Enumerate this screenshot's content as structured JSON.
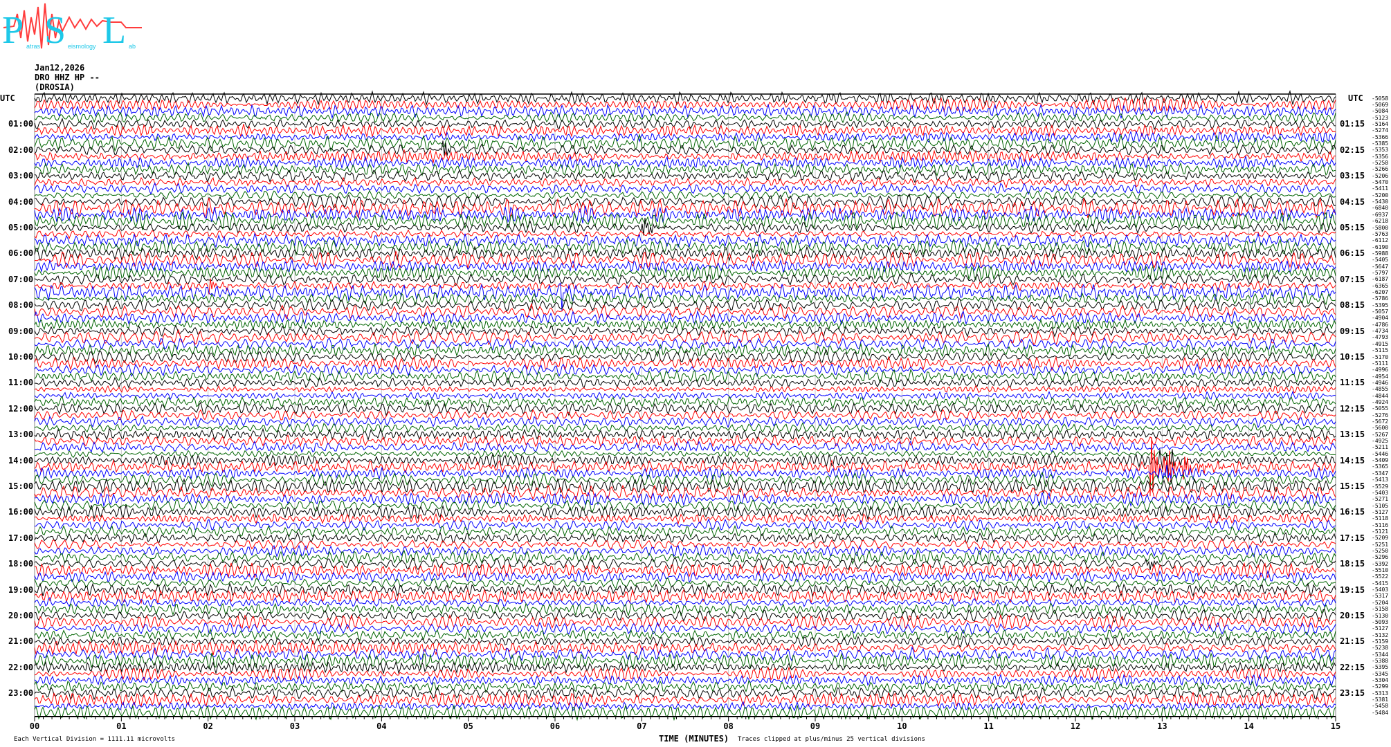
{
  "logo": {
    "letters": [
      "P",
      "S",
      "L"
    ],
    "words": [
      "atras",
      "eismology",
      "ab"
    ],
    "colors": {
      "letters": "#1ec8e8",
      "wave": "#ff3c3c"
    }
  },
  "header": {
    "date": "Jan12,2026",
    "channel": "DRO HHZ HP --",
    "station": "(DROSIA)"
  },
  "left_axis": {
    "title": "UTC",
    "labels": [
      "01:00",
      "02:00",
      "03:00",
      "04:00",
      "05:00",
      "06:00",
      "07:00",
      "08:00",
      "09:00",
      "10:00",
      "11:00",
      "12:00",
      "13:00",
      "14:00",
      "15:00",
      "16:00",
      "17:00",
      "18:00",
      "19:00",
      "20:00",
      "21:00",
      "22:00",
      "23:00"
    ]
  },
  "right_axis": {
    "title": "UTC",
    "labels": [
      "01:15",
      "02:15",
      "03:15",
      "04:15",
      "05:15",
      "06:15",
      "07:15",
      "08:15",
      "09:15",
      "10:15",
      "11:15",
      "12:15",
      "13:15",
      "14:15",
      "15:15",
      "16:15",
      "17:15",
      "18:15",
      "19:15",
      "20:15",
      "21:15",
      "22:15",
      "23:15"
    ]
  },
  "line_offsets": [
    "-5058",
    "-5069",
    "-5084",
    "-5123",
    "-5164",
    "-5274",
    "-5366",
    "-5385",
    "-5353",
    "-5356",
    "-5258",
    "-5266",
    "-5206",
    "-5470",
    "-5411",
    "-5200",
    "-5430",
    "-6840",
    "-6937",
    "-6218",
    "-5800",
    "-5763",
    "-6112",
    "-6190",
    "-5988",
    "-5405",
    "-5647",
    "-5797",
    "-6187",
    "-6365",
    "-6207",
    "-5786",
    "-5395",
    "-5057",
    "-4904",
    "-4786",
    "-4734",
    "-4793",
    "-4915",
    "-5115",
    "-5170",
    "-5111",
    "-4996",
    "-4954",
    "-4946",
    "-4855",
    "-4844",
    "-4924",
    "-5055",
    "-5276",
    "-5672",
    "-5600",
    "-5267",
    "-4925",
    "-5211",
    "-5446",
    "-5409",
    "-5365",
    "-5347",
    "-5413",
    "-5529",
    "-5403",
    "-5271",
    "-5105",
    "-5127",
    "-5118",
    "-5116",
    "-5121",
    "-5209",
    "-5251",
    "-5250",
    "-5296",
    "-5392",
    "-5510",
    "-5522",
    "-5415",
    "-5403",
    "-5317",
    "-5204",
    "-5158",
    "-5130",
    "-5093",
    "-5127",
    "-5132",
    "-5159",
    "-5238",
    "-5344",
    "-5388",
    "-5395",
    "-5345",
    "-5304",
    "-5299",
    "-5313",
    "-5381",
    "-5458",
    "-5484"
  ],
  "x_axis": {
    "ticks": [
      "00",
      "01",
      "02",
      "03",
      "04",
      "05",
      "06",
      "07",
      "08",
      "09",
      "10",
      "11",
      "12",
      "13",
      "14",
      "15"
    ],
    "title": "TIME (MINUTES)"
  },
  "footer": {
    "scale": "Each Vertical Division = 1111.11 microvolts",
    "clip": "Traces clipped at plus/minus 25 vertical divisions"
  },
  "trace_colors": [
    "#000000",
    "#ff0000",
    "#0000ff",
    "#006400"
  ]
}
